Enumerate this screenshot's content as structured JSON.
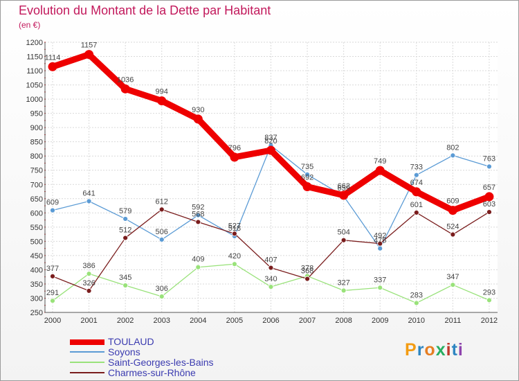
{
  "header": {
    "title": "Evolution du Montant de la Dette par Habitant",
    "subtitle": "(en €)"
  },
  "logo": {
    "letters": [
      "P",
      "r",
      "o",
      "x",
      "i",
      "t",
      "i"
    ],
    "colors": [
      "#f39c12",
      "#2e86c1",
      "#e67e22",
      "#27ae60",
      "#c0392b",
      "#2e86c1",
      "#8e44ad"
    ]
  },
  "chart_data": {
    "type": "line",
    "title": "Evolution du Montant de la Dette par Habitant",
    "subtitle": "(en €)",
    "xlabel": "",
    "ylabel": "",
    "x": [
      2000,
      2001,
      2002,
      2003,
      2004,
      2005,
      2006,
      2007,
      2008,
      2009,
      2010,
      2011,
      2012
    ],
    "yticks": [
      250,
      300,
      350,
      400,
      450,
      500,
      550,
      600,
      650,
      700,
      750,
      800,
      850,
      900,
      950,
      1000,
      1050,
      1100,
      1150,
      1200
    ],
    "ylim": [
      250,
      1200
    ],
    "grid": true,
    "legend_position": "bottom-left",
    "series": [
      {
        "name": "TOULAUD",
        "color": "#ee0000",
        "values": [
          1114,
          1157,
          1036,
          994,
          930,
          796,
          820,
          692,
          662,
          749,
          674,
          609,
          657
        ]
      },
      {
        "name": "Soyons",
        "color": "#5b9bd5",
        "values": [
          609,
          641,
          579,
          506,
          592,
          518,
          837,
          735,
          659,
          475,
          733,
          802,
          763
        ]
      },
      {
        "name": "Saint-Georges-les-Bains",
        "color": "#99e27a",
        "values": [
          291,
          386,
          345,
          306,
          409,
          420,
          340,
          378,
          327,
          337,
          283,
          347,
          293
        ]
      },
      {
        "name": "Charmes-sur-Rhône",
        "color": "#7a1d1d",
        "values": [
          377,
          326,
          512,
          612,
          568,
          527,
          407,
          368,
          504,
          492,
          601,
          524,
          603
        ]
      }
    ]
  }
}
